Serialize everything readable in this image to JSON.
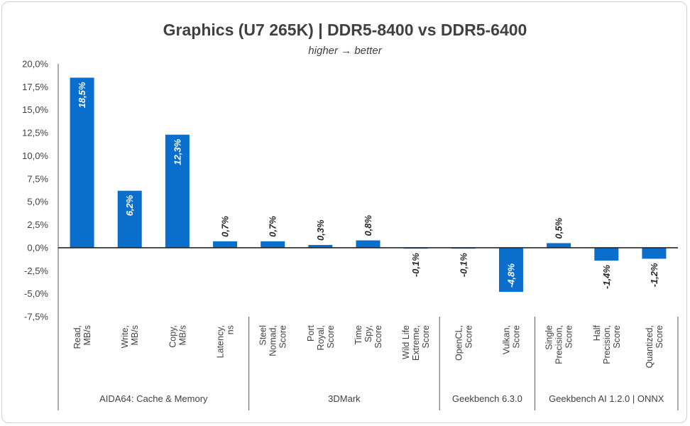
{
  "chart_data": {
    "type": "bar",
    "title": "Graphics (U7 265K) | DDR5-8400 vs DDR5-6400",
    "subtitle": "higher → better",
    "ylim": [
      -7.5,
      20
    ],
    "yticks": [
      "20,0%",
      "17,5%",
      "15,0%",
      "12,5%",
      "10,0%",
      "7,5%",
      "5,0%",
      "2,5%",
      "0,0%",
      "-2,5%",
      "-5,0%",
      "-7,5%"
    ],
    "ytick_values": [
      20,
      17.5,
      15,
      12.5,
      10,
      7.5,
      5,
      2.5,
      0,
      -2.5,
      -5,
      -7.5
    ],
    "bar_color": "#0a6ecc",
    "categories": [
      {
        "lines": [
          "Read,",
          "MB/s"
        ],
        "group": 0
      },
      {
        "lines": [
          "Write,",
          "MB/s"
        ],
        "group": 0
      },
      {
        "lines": [
          "Copy,",
          "MB/s"
        ],
        "group": 0
      },
      {
        "lines": [
          "Latency,",
          "ns"
        ],
        "group": 0
      },
      {
        "lines": [
          "Steel",
          "Nomad,",
          "Score"
        ],
        "group": 1
      },
      {
        "lines": [
          "Port",
          "Royal,",
          "Score"
        ],
        "group": 1
      },
      {
        "lines": [
          "Time",
          "Spy,",
          "Score"
        ],
        "group": 1
      },
      {
        "lines": [
          "Wild Life",
          "Extreme,",
          "Score"
        ],
        "group": 1
      },
      {
        "lines": [
          "OpenCL,",
          "Score"
        ],
        "group": 2
      },
      {
        "lines": [
          "Vulkan,",
          "Score"
        ],
        "group": 2
      },
      {
        "lines": [
          "Single",
          "Precision,",
          "Score"
        ],
        "group": 3
      },
      {
        "lines": [
          "Half",
          "Precision,",
          "Score"
        ],
        "group": 3
      },
      {
        "lines": [
          "Quantized,",
          "Score"
        ],
        "group": 3
      }
    ],
    "values": [
      18.5,
      6.2,
      12.3,
      0.7,
      0.7,
      0.3,
      0.8,
      -0.1,
      -0.1,
      -4.8,
      0.5,
      -1.4,
      -1.2
    ],
    "data_labels": [
      "18,5%",
      "6,2%",
      "12,3%",
      "0,7%",
      "0,7%",
      "0,3%",
      "0,8%",
      "-0,1%",
      "-0,1%",
      "-4,8%",
      "0,5%",
      "-1,4%",
      "-1,2%"
    ],
    "label_inside": [
      true,
      true,
      true,
      false,
      false,
      false,
      false,
      false,
      false,
      true,
      false,
      false,
      false
    ],
    "groups": [
      "AIDA64: Cache & Memory",
      "3DMark",
      "Geekbench 6.3.0",
      "Geekbench AI 1.2.0 | ONNX"
    ],
    "grid": false,
    "legend": "none"
  }
}
